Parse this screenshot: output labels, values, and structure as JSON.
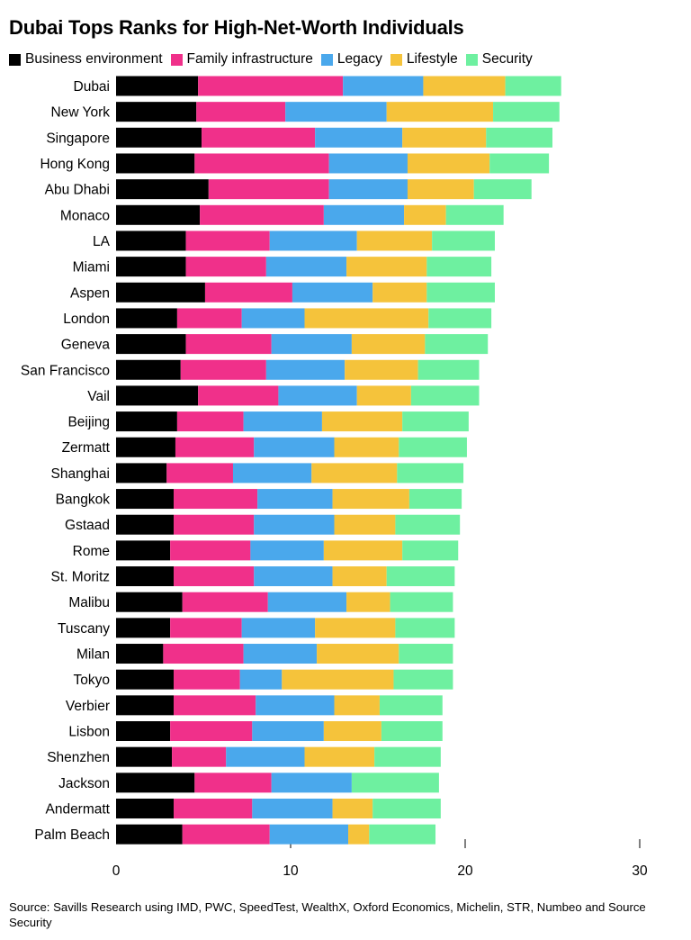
{
  "chart_data": {
    "type": "bar",
    "orientation": "horizontal",
    "stacked": true,
    "title": "Dubai Tops Ranks for High-Net-Worth Individuals",
    "xlim": [
      0,
      30
    ],
    "xticks": [
      0,
      10,
      20,
      30
    ],
    "legend_position": "top-left",
    "categories": [
      "Dubai",
      "New York",
      "Singapore",
      "Hong Kong",
      "Abu Dhabi",
      "Monaco",
      "LA",
      "Miami",
      "Aspen",
      "London",
      "Geneva",
      "San Francisco",
      "Vail",
      "Beijing",
      "Zermatt",
      "Shanghai",
      "Bangkok",
      "Gstaad",
      "Rome",
      "St. Moritz",
      "Malibu",
      "Tuscany",
      "Milan",
      "Tokyo",
      "Verbier",
      "Lisbon",
      "Shenzhen",
      "Jackson",
      "Andermatt",
      "Palm Beach"
    ],
    "series": [
      {
        "name": "Business environment",
        "color": "#000000",
        "values": [
          4.7,
          4.6,
          4.9,
          4.5,
          5.3,
          4.8,
          4.0,
          4.0,
          5.1,
          3.5,
          4.0,
          3.7,
          4.7,
          3.5,
          3.4,
          2.9,
          3.3,
          3.3,
          3.1,
          3.3,
          3.8,
          3.1,
          2.7,
          3.3,
          3.3,
          3.1,
          3.2,
          4.5,
          3.3,
          3.8
        ]
      },
      {
        "name": "Family infrastructure",
        "color": "#f0308a",
        "values": [
          8.3,
          5.1,
          6.5,
          7.7,
          6.9,
          7.1,
          4.8,
          4.6,
          5.0,
          3.7,
          4.9,
          4.9,
          4.6,
          3.8,
          4.5,
          3.8,
          4.8,
          4.6,
          4.6,
          4.6,
          4.9,
          4.1,
          4.6,
          3.8,
          4.7,
          4.7,
          3.1,
          4.4,
          4.5,
          5.0
        ]
      },
      {
        "name": "Legacy",
        "color": "#4aa8ec",
        "values": [
          4.6,
          5.8,
          5.0,
          4.5,
          4.5,
          4.6,
          5.0,
          4.6,
          4.6,
          3.6,
          4.6,
          4.5,
          4.5,
          4.5,
          4.6,
          4.5,
          4.3,
          4.6,
          4.2,
          4.5,
          4.5,
          4.2,
          4.2,
          2.4,
          4.5,
          4.1,
          4.5,
          4.6,
          4.6,
          4.5
        ]
      },
      {
        "name": "Lifestyle",
        "color": "#f5c33b",
        "values": [
          4.7,
          6.1,
          4.8,
          4.7,
          3.8,
          2.4,
          4.3,
          4.6,
          3.1,
          7.1,
          4.2,
          4.2,
          3.1,
          4.6,
          3.7,
          4.9,
          4.4,
          3.5,
          4.5,
          3.1,
          2.5,
          4.6,
          4.7,
          6.4,
          2.6,
          3.3,
          4.0,
          0.0,
          2.3,
          1.2
        ]
      },
      {
        "name": "Security",
        "color": "#6ef0a0",
        "values": [
          3.2,
          3.8,
          3.8,
          3.4,
          3.3,
          3.3,
          3.6,
          3.7,
          3.9,
          3.6,
          3.6,
          3.5,
          3.9,
          3.8,
          3.9,
          3.8,
          3.0,
          3.7,
          3.2,
          3.9,
          3.6,
          3.4,
          3.1,
          3.4,
          3.6,
          3.5,
          3.8,
          5.0,
          3.9,
          3.8
        ]
      }
    ]
  },
  "source_text": "Source: Savills Research using IMD, PWC, SpeedTest, WealthX, Oxford Economics, Michelin, STR, Numbeo and Source Security"
}
